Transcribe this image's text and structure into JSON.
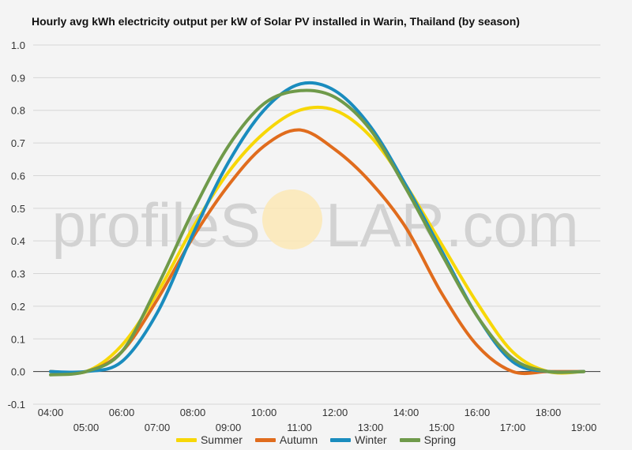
{
  "watermark": {
    "left": "profileS",
    "right": "LAR.com"
  },
  "chart_data": {
    "type": "line",
    "title": "Hourly avg kWh electricity output per kW of Solar PV installed in Warin, Thailand (by season)",
    "xlabel": "",
    "ylabel": "",
    "x": [
      "04:00",
      "05:00",
      "06:00",
      "07:00",
      "08:00",
      "09:00",
      "10:00",
      "11:00",
      "12:00",
      "13:00",
      "14:00",
      "15:00",
      "16:00",
      "17:00",
      "18:00",
      "19:00"
    ],
    "ylim": [
      -0.1,
      1.0
    ],
    "yticks": [
      "-0.1",
      "0.0",
      "0.1",
      "0.2",
      "0.3",
      "0.4",
      "0.5",
      "0.6",
      "0.7",
      "0.8",
      "0.9",
      "1.0"
    ],
    "grid": true,
    "legend_position": "bottom",
    "series": [
      {
        "name": "Summer",
        "color": "#f7d707",
        "values": [
          0.0,
          0.0,
          0.08,
          0.24,
          0.44,
          0.61,
          0.73,
          0.8,
          0.8,
          0.72,
          0.57,
          0.39,
          0.21,
          0.06,
          0.0,
          0.0
        ]
      },
      {
        "name": "Autumn",
        "color": "#e06c1d",
        "values": [
          0.0,
          0.0,
          0.06,
          0.22,
          0.41,
          0.57,
          0.69,
          0.74,
          0.68,
          0.58,
          0.44,
          0.24,
          0.08,
          0.0,
          0.0,
          0.0
        ]
      },
      {
        "name": "Winter",
        "color": "#1a8cbe",
        "values": [
          0.0,
          0.0,
          0.03,
          0.18,
          0.42,
          0.64,
          0.8,
          0.88,
          0.86,
          0.75,
          0.57,
          0.37,
          0.17,
          0.03,
          0.0,
          0.0
        ]
      },
      {
        "name": "Spring",
        "color": "#6f9a4a",
        "values": [
          -0.01,
          0.0,
          0.06,
          0.26,
          0.49,
          0.69,
          0.82,
          0.86,
          0.84,
          0.74,
          0.56,
          0.36,
          0.17,
          0.04,
          0.0,
          0.0
        ]
      }
    ]
  }
}
